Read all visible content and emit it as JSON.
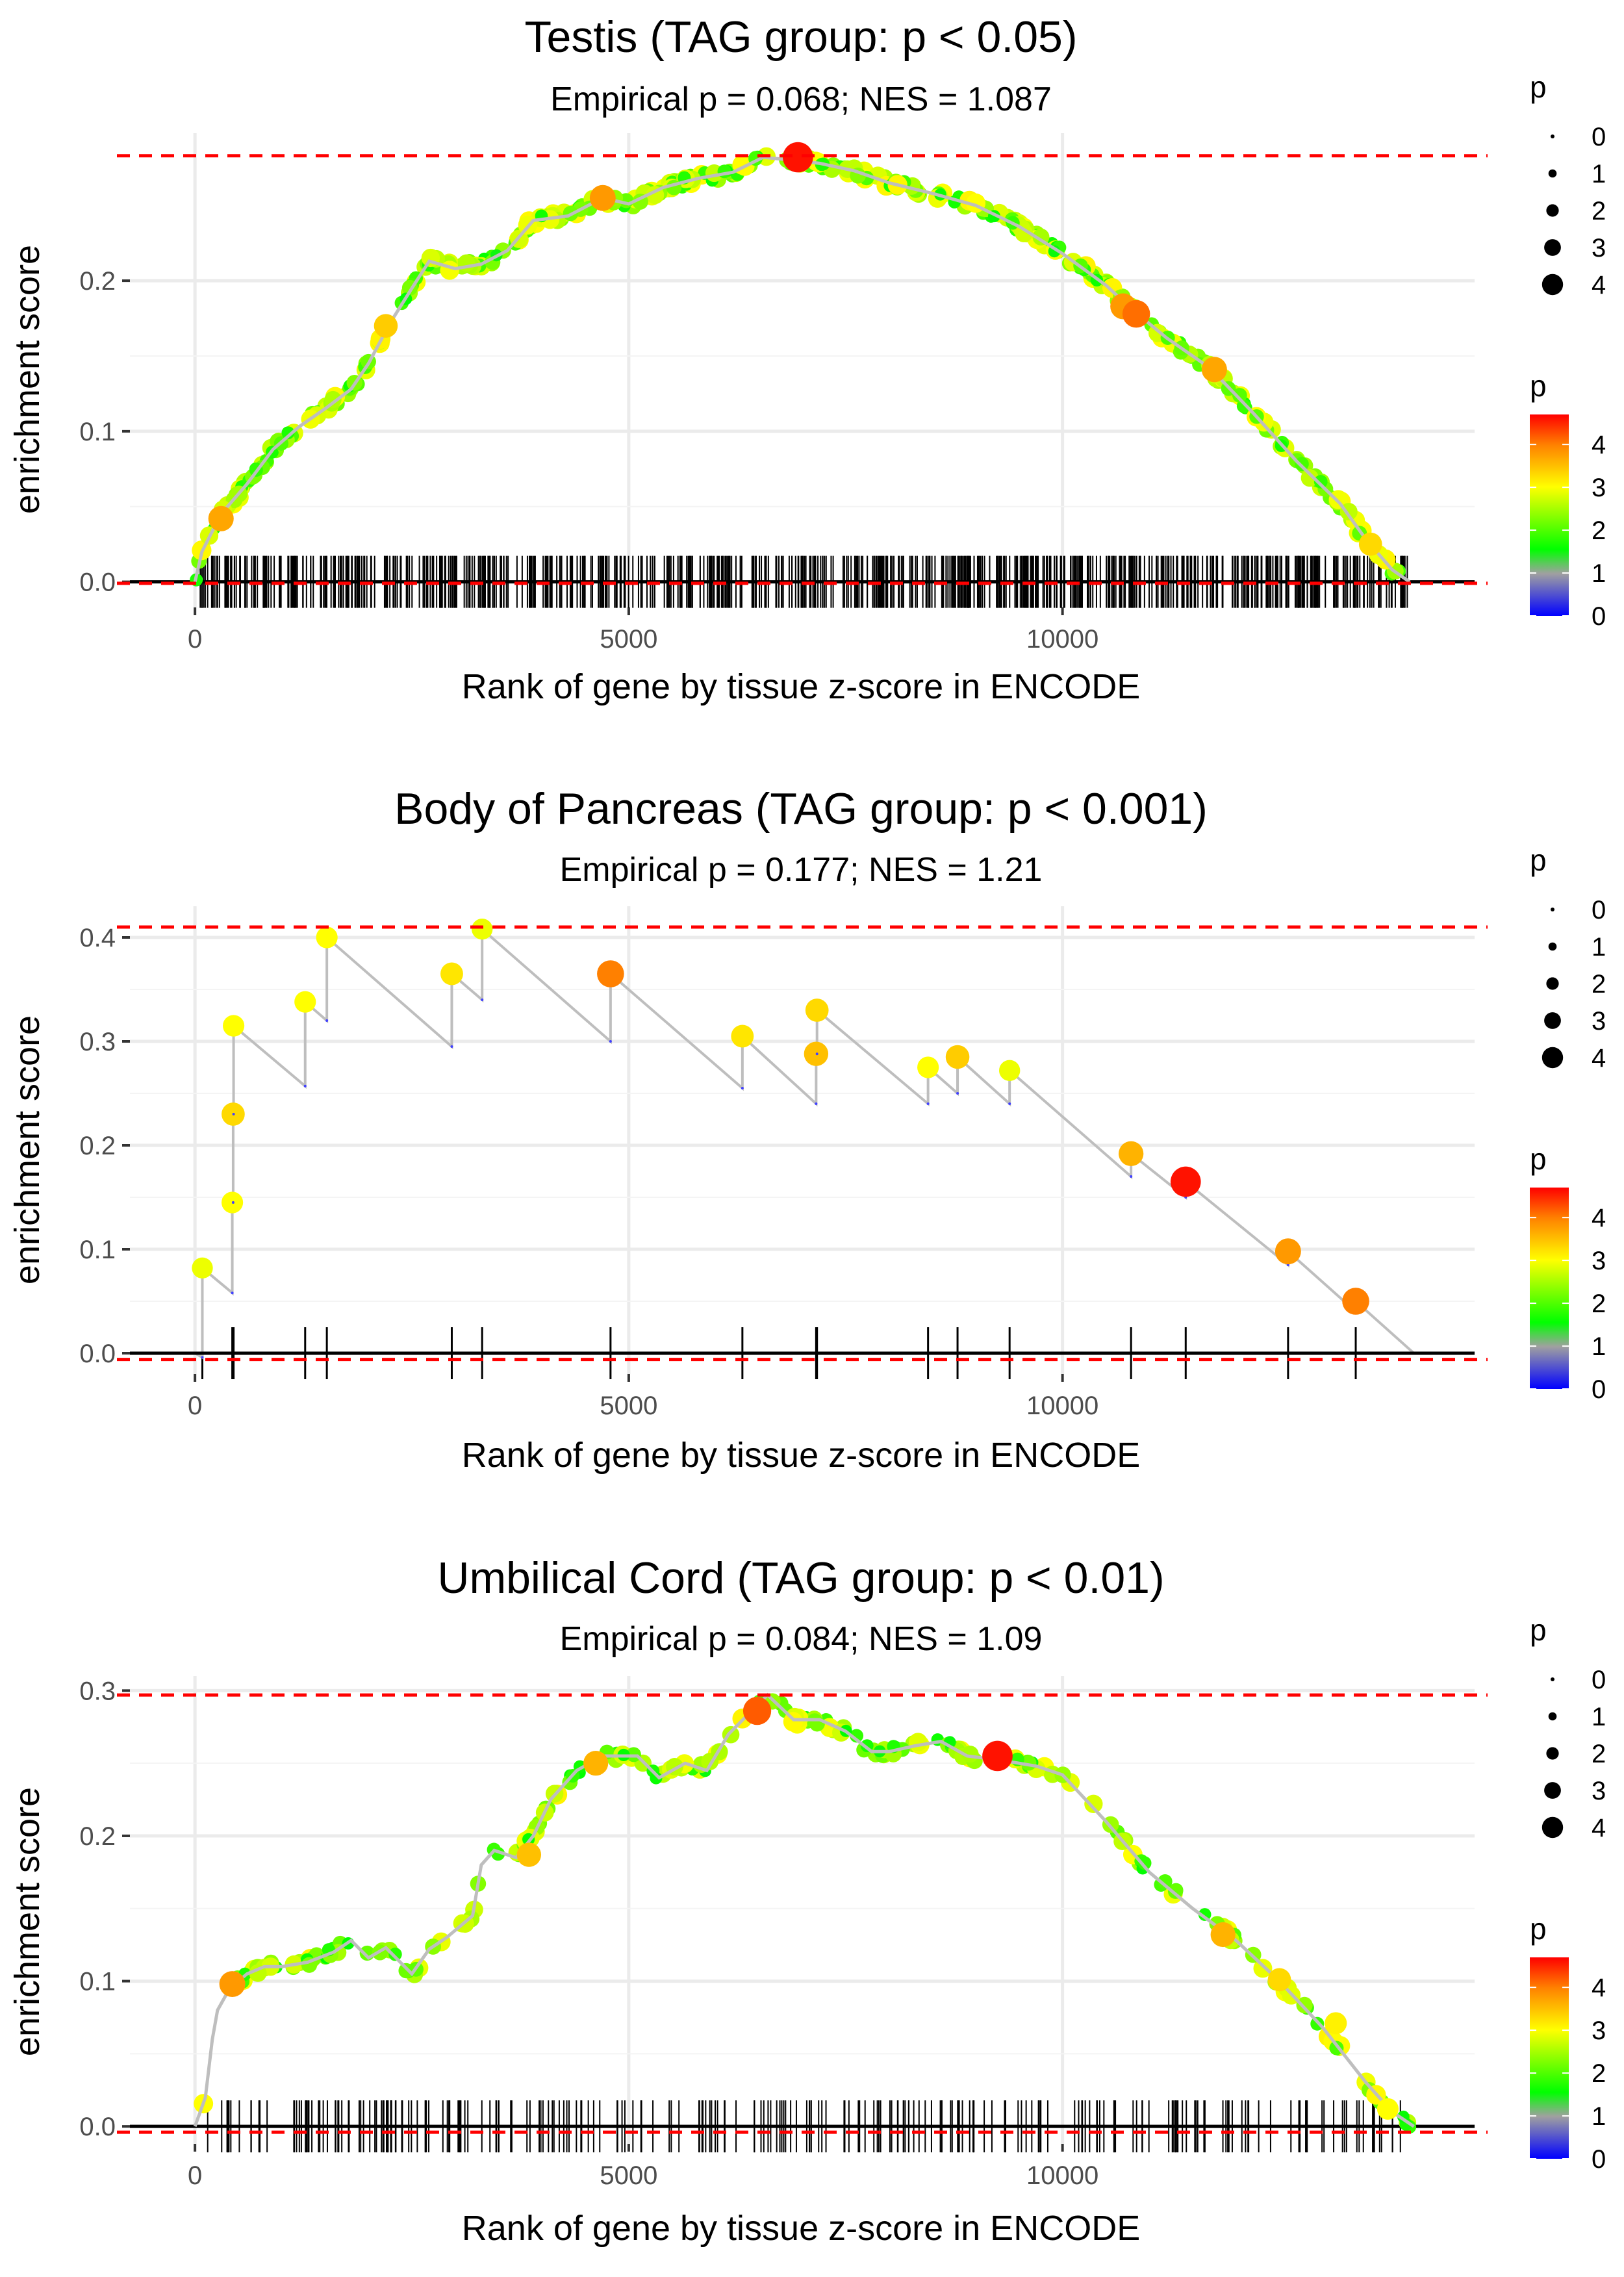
{
  "chart_data": [
    {
      "type": "line",
      "title": "Testis (TAG group: p < 0.05)",
      "subtitle": "Empirical p = 0.068; NES = 1.087",
      "xlabel": "Rank of gene by tissue z-score in ENCODE",
      "ylabel": "enrichment score",
      "xlim": [
        -750,
        14750
      ],
      "ylim": [
        -0.017,
        0.298
      ],
      "x_ticks": [
        0,
        5000,
        10000
      ],
      "x_tick_labels": [
        "0",
        "5000",
        "10000"
      ],
      "y_ticks": [
        0.0,
        0.1,
        0.2
      ],
      "y_tick_labels": [
        "0.0",
        "0.1",
        "0.2"
      ],
      "max_es": 0.283,
      "min_es": -0.001,
      "grid": true,
      "curve": [
        [
          0,
          0
        ],
        [
          80,
          0.02
        ],
        [
          300,
          0.045
        ],
        [
          600,
          0.065
        ],
        [
          900,
          0.088
        ],
        [
          1200,
          0.103
        ],
        [
          1500,
          0.115
        ],
        [
          1800,
          0.128
        ],
        [
          2000,
          0.145
        ],
        [
          2250,
          0.172
        ],
        [
          2500,
          0.195
        ],
        [
          2700,
          0.213
        ],
        [
          3000,
          0.208
        ],
        [
          3300,
          0.211
        ],
        [
          3600,
          0.22
        ],
        [
          3900,
          0.24
        ],
        [
          4300,
          0.243
        ],
        [
          4700,
          0.255
        ],
        [
          5000,
          0.251
        ],
        [
          5400,
          0.262
        ],
        [
          5800,
          0.268
        ],
        [
          6200,
          0.272
        ],
        [
          6550,
          0.282
        ],
        [
          6900,
          0.28
        ],
        [
          7200,
          0.278
        ],
        [
          7600,
          0.273
        ],
        [
          8000,
          0.265
        ],
        [
          8500,
          0.258
        ],
        [
          9000,
          0.25
        ],
        [
          9500,
          0.236
        ],
        [
          10000,
          0.218
        ],
        [
          10500,
          0.197
        ],
        [
          10800,
          0.181
        ],
        [
          11200,
          0.162
        ],
        [
          11700,
          0.142
        ],
        [
          12200,
          0.112
        ],
        [
          12700,
          0.08
        ],
        [
          13200,
          0.052
        ],
        [
          13500,
          0.028
        ],
        [
          13800,
          0.008
        ],
        [
          14000,
          0
        ]
      ],
      "highlight_points": [
        {
          "x": 300,
          "y": 0.042,
          "p": 3.7
        },
        {
          "x": 2200,
          "y": 0.17,
          "p": 3.4
        },
        {
          "x": 4700,
          "y": 0.255,
          "p": 3.8
        },
        {
          "x": 6950,
          "y": 0.282,
          "p": 4.6
        },
        {
          "x": 10700,
          "y": 0.183,
          "p": 3.8
        },
        {
          "x": 10850,
          "y": 0.178,
          "p": 4.1
        },
        {
          "x": 11750,
          "y": 0.141,
          "p": 3.7
        },
        {
          "x": 13550,
          "y": 0.025,
          "p": 3.3
        }
      ],
      "rug_density": "dense",
      "rug_range": [
        60,
        14000
      ]
    },
    {
      "type": "line",
      "title": "Body of Pancreas (TAG group: p < 0.001)",
      "subtitle": "Empirical p = 0.177; NES = 1.21",
      "xlabel": "Rank of gene by tissue z-score in ENCODE",
      "ylabel": "enrichment score",
      "xlim": [
        -750,
        14750
      ],
      "ylim": [
        -0.02,
        0.43
      ],
      "x_ticks": [
        0,
        5000,
        10000
      ],
      "x_tick_labels": [
        "0",
        "5000",
        "10000"
      ],
      "y_ticks": [
        0.0,
        0.1,
        0.2,
        0.3,
        0.4
      ],
      "y_tick_labels": [
        "0.0",
        "0.1",
        "0.2",
        "0.3",
        "0.4"
      ],
      "max_es": 0.41,
      "min_es": -0.006,
      "grid": true,
      "hits": [
        {
          "x": 85,
          "pre": -0.004,
          "y": 0.082,
          "p": 2.9
        },
        {
          "x": 430,
          "pre": 0.058,
          "y": 0.145,
          "p": 3.0
        },
        {
          "x": 440,
          "pre": 0.145,
          "y": 0.23,
          "p": 3.3
        },
        {
          "x": 445,
          "pre": 0.23,
          "y": 0.315,
          "p": 3.0
        },
        {
          "x": 1270,
          "pre": 0.257,
          "y": 0.338,
          "p": 3.0
        },
        {
          "x": 1520,
          "pre": 0.32,
          "y": 0.4,
          "p": 3.0
        },
        {
          "x": 2960,
          "pre": 0.295,
          "y": 0.365,
          "p": 3.2
        },
        {
          "x": 3310,
          "pre": 0.34,
          "y": 0.408,
          "p": 2.9
        },
        {
          "x": 4790,
          "pre": 0.3,
          "y": 0.365,
          "p": 4.0
        },
        {
          "x": 6310,
          "pre": 0.255,
          "y": 0.305,
          "p": 3.2
        },
        {
          "x": 7160,
          "pre": 0.24,
          "y": 0.288,
          "p": 3.5
        },
        {
          "x": 7170,
          "pre": 0.288,
          "y": 0.33,
          "p": 3.3
        },
        {
          "x": 8450,
          "pre": 0.24,
          "y": 0.275,
          "p": 3.0
        },
        {
          "x": 8790,
          "pre": 0.25,
          "y": 0.285,
          "p": 3.4
        },
        {
          "x": 9390,
          "pre": 0.24,
          "y": 0.272,
          "p": 2.9
        },
        {
          "x": 10790,
          "pre": 0.17,
          "y": 0.192,
          "p": 3.6
        },
        {
          "x": 11420,
          "pre": 0.15,
          "y": 0.165,
          "p": 4.6
        },
        {
          "x": 12600,
          "pre": 0.085,
          "y": 0.098,
          "p": 3.8
        },
        {
          "x": 13380,
          "pre": 0.04,
          "y": 0.05,
          "p": 4.0
        }
      ],
      "end_x": 14050
    },
    {
      "type": "line",
      "title": "Umbilical Cord (TAG group: p < 0.01)",
      "subtitle": "Empirical p = 0.084; NES = 1.09",
      "xlabel": "Rank of gene by tissue z-score in ENCODE",
      "ylabel": "enrichment score",
      "xlim": [
        -750,
        14750
      ],
      "ylim": [
        -0.012,
        0.31
      ],
      "x_ticks": [
        0,
        5000,
        10000
      ],
      "x_tick_labels": [
        "0",
        "5000",
        "10000"
      ],
      "y_ticks": [
        0.0,
        0.1,
        0.2,
        0.3
      ],
      "y_tick_labels": [
        "0.0",
        "0.1",
        "0.2",
        "0.3"
      ],
      "max_es": 0.297,
      "min_es": -0.004,
      "grid": true,
      "curve": [
        [
          0,
          0
        ],
        [
          120,
          0.02
        ],
        [
          200,
          0.06
        ],
        [
          260,
          0.08
        ],
        [
          400,
          0.095
        ],
        [
          600,
          0.105
        ],
        [
          800,
          0.11
        ],
        [
          1000,
          0.11
        ],
        [
          1300,
          0.113
        ],
        [
          1600,
          0.12
        ],
        [
          1800,
          0.128
        ],
        [
          2000,
          0.116
        ],
        [
          2200,
          0.123
        ],
        [
          2500,
          0.105
        ],
        [
          2700,
          0.122
        ],
        [
          2900,
          0.13
        ],
        [
          3200,
          0.145
        ],
        [
          3300,
          0.18
        ],
        [
          3450,
          0.19
        ],
        [
          3700,
          0.185
        ],
        [
          3900,
          0.2
        ],
        [
          4100,
          0.225
        ],
        [
          4400,
          0.245
        ],
        [
          4700,
          0.255
        ],
        [
          5100,
          0.255
        ],
        [
          5350,
          0.24
        ],
        [
          5650,
          0.25
        ],
        [
          5900,
          0.245
        ],
        [
          6150,
          0.27
        ],
        [
          6400,
          0.285
        ],
        [
          6600,
          0.297
        ],
        [
          6900,
          0.28
        ],
        [
          7200,
          0.28
        ],
        [
          7500,
          0.272
        ],
        [
          7800,
          0.258
        ],
        [
          8000,
          0.258
        ],
        [
          8300,
          0.262
        ],
        [
          8600,
          0.265
        ],
        [
          8900,
          0.255
        ],
        [
          9300,
          0.252
        ],
        [
          9700,
          0.248
        ],
        [
          10000,
          0.242
        ],
        [
          10500,
          0.21
        ],
        [
          11000,
          0.175
        ],
        [
          11500,
          0.15
        ],
        [
          12000,
          0.128
        ],
        [
          12500,
          0.1
        ],
        [
          13000,
          0.068
        ],
        [
          13500,
          0.03
        ],
        [
          13800,
          0.01
        ],
        [
          14050,
          0
        ]
      ],
      "highlight_points": [
        {
          "x": 430,
          "y": 0.098,
          "p": 3.8
        },
        {
          "x": 3850,
          "y": 0.187,
          "p": 3.5
        },
        {
          "x": 4620,
          "y": 0.25,
          "p": 3.6
        },
        {
          "x": 6480,
          "y": 0.286,
          "p": 4.2
        },
        {
          "x": 9250,
          "y": 0.255,
          "p": 4.6
        },
        {
          "x": 11850,
          "y": 0.132,
          "p": 3.6
        },
        {
          "x": 12500,
          "y": 0.101,
          "p": 3.3
        },
        {
          "x": 13150,
          "y": 0.071,
          "p": 3.1
        },
        {
          "x": 13750,
          "y": 0.012,
          "p": 3.0
        }
      ],
      "rug_density": "medium",
      "rug_range": [
        100,
        14000
      ]
    }
  ],
  "legend": {
    "size_title": "p",
    "size_labels": [
      "0",
      "1",
      "2",
      "3",
      "4"
    ],
    "color_title": "p",
    "color_labels": [
      "4",
      "3",
      "2",
      "1",
      "0"
    ],
    "colors": [
      "#0000ff",
      "#a0a0a0",
      "#00ff00",
      "#ffff00",
      "#ff8000",
      "#ff0000"
    ],
    "color_range": [
      0,
      4.7
    ]
  },
  "colors": {
    "curve": "#bebebe",
    "dashed": "#ff0000",
    "zero_line": "#000000",
    "grid": "#ebebeb"
  }
}
